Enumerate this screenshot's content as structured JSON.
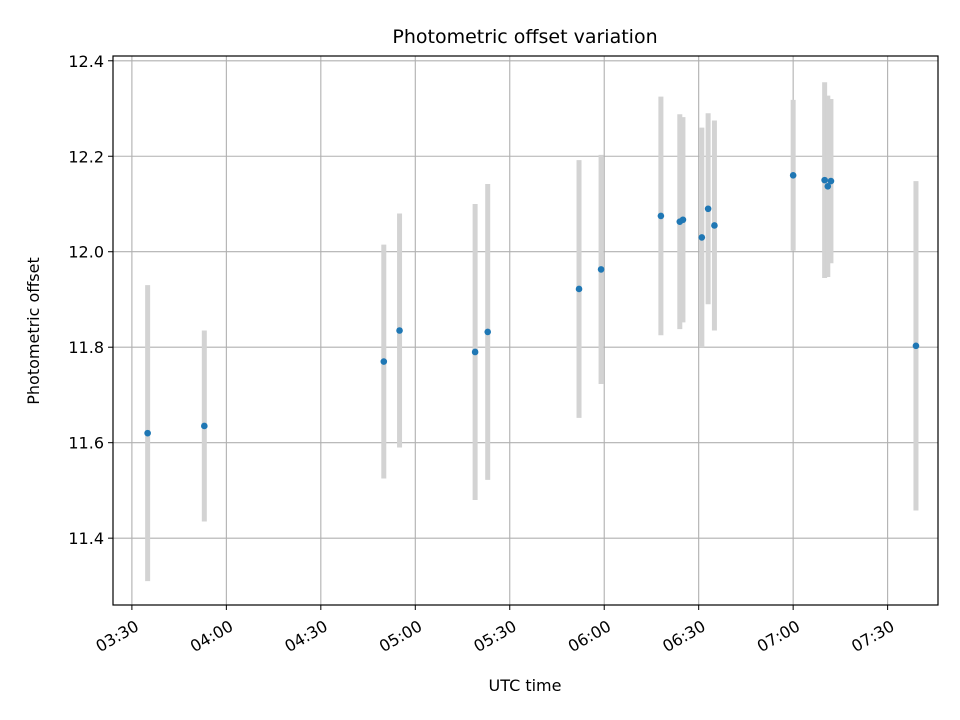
{
  "chart_data": {
    "type": "scatter",
    "title": "Photometric offset variation",
    "xlabel": "UTC time",
    "ylabel": "Photometric offset",
    "x_axis_type": "time",
    "xlim": [
      "03:24",
      "07:46"
    ],
    "ylim": [
      11.26,
      12.41
    ],
    "x_ticks": [
      "03:30",
      "04:00",
      "04:30",
      "05:00",
      "05:30",
      "06:00",
      "06:30",
      "07:00",
      "07:30"
    ],
    "y_ticks": [
      "11.4",
      "11.6",
      "11.8",
      "12.0",
      "12.2",
      "12.4"
    ],
    "grid": true,
    "colors": {
      "marker": "#1f77b4",
      "errorbar": "#d3d3d3",
      "grid": "#b0b0b0"
    },
    "points": [
      {
        "x": "03:35",
        "y": 11.62,
        "yerr": 0.31
      },
      {
        "x": "03:53",
        "y": 11.635,
        "yerr": 0.2
      },
      {
        "x": "04:50",
        "y": 11.77,
        "yerr": 0.245
      },
      {
        "x": "04:55",
        "y": 11.835,
        "yerr": 0.245
      },
      {
        "x": "05:19",
        "y": 11.79,
        "yerr": 0.31
      },
      {
        "x": "05:23",
        "y": 11.832,
        "yerr": 0.31
      },
      {
        "x": "05:52",
        "y": 11.922,
        "yerr": 0.27
      },
      {
        "x": "05:59",
        "y": 11.963,
        "yerr": 0.24
      },
      {
        "x": "06:18",
        "y": 12.075,
        "yerr": 0.25
      },
      {
        "x": "06:24",
        "y": 12.063,
        "yerr": 0.225
      },
      {
        "x": "06:25",
        "y": 12.067,
        "yerr": 0.215
      },
      {
        "x": "06:31",
        "y": 12.03,
        "yerr": 0.23
      },
      {
        "x": "06:33",
        "y": 12.09,
        "yerr": 0.2
      },
      {
        "x": "06:35",
        "y": 12.055,
        "yerr": 0.22
      },
      {
        "x": "07:00",
        "y": 12.16,
        "yerr": 0.158
      },
      {
        "x": "07:10",
        "y": 12.15,
        "yerr": 0.205
      },
      {
        "x": "07:11",
        "y": 12.137,
        "yerr": 0.19
      },
      {
        "x": "07:12",
        "y": 12.148,
        "yerr": 0.172
      },
      {
        "x": "07:39",
        "y": 11.803,
        "yerr": 0.345
      }
    ]
  }
}
